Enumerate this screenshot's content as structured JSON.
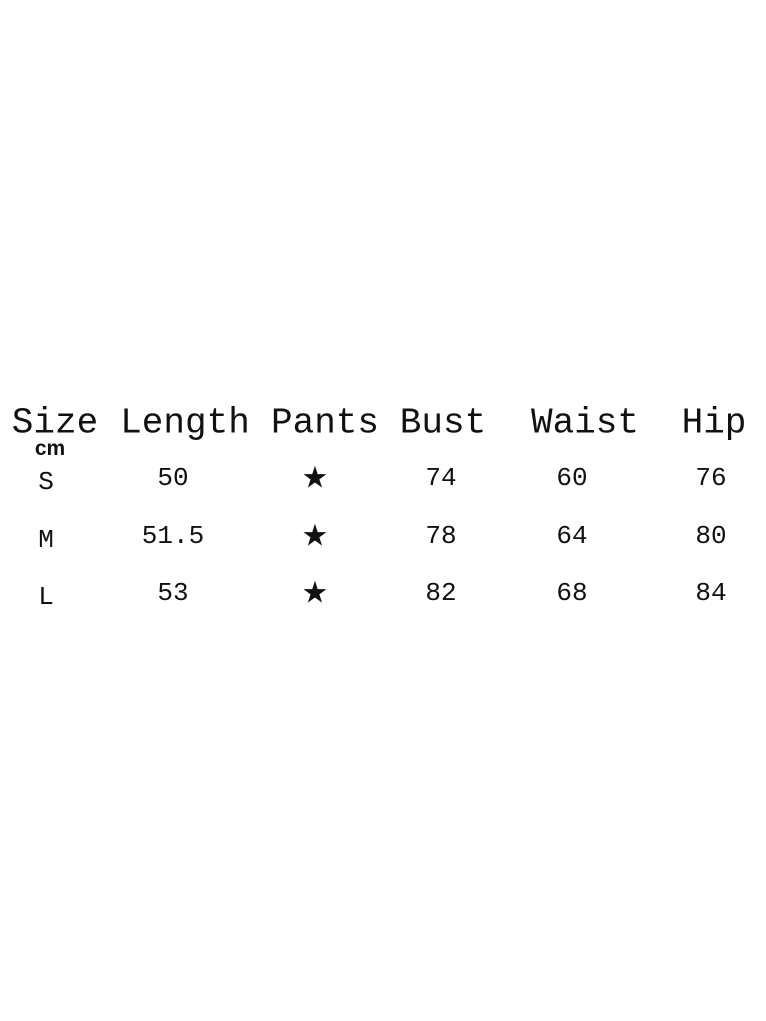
{
  "table": {
    "header": [
      "Size",
      "Length",
      "Pants",
      "Bust",
      "Waist",
      "Hip"
    ],
    "unit": "cm",
    "rows": [
      [
        "S",
        "50",
        "★",
        "74",
        "60",
        "76"
      ],
      [
        "M",
        "51.5",
        "★",
        "78",
        "64",
        "80"
      ],
      [
        "L",
        "53",
        "★",
        "82",
        "68",
        "84"
      ]
    ]
  }
}
